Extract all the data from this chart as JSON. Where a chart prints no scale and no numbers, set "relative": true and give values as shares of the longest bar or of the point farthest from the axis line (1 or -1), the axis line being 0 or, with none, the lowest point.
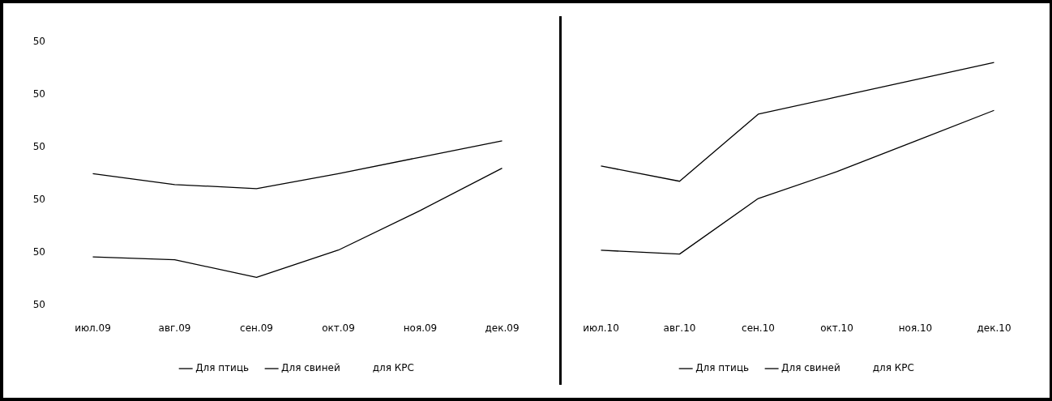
{
  "chart_data": [
    {
      "type": "line",
      "relative": true,
      "categories": [
        "июл.09",
        "авг.09",
        "сен.09",
        "окт.09",
        "ноя.09",
        "дек.09"
      ],
      "annotations": [
        "50",
        "50",
        "50",
        "50",
        "50",
        "50"
      ],
      "series": [
        {
          "name": "Для птиць",
          "color": "#000000",
          "values": [
            0.76,
            0.68,
            0.65,
            0.76,
            0.88,
            1
          ]
        },
        {
          "name": "Для свиней",
          "color": "#000000",
          "values": [
            0.15,
            0.13,
            0,
            0.2,
            0.49,
            0.8
          ]
        },
        {
          "name": "для КРС",
          "values": [
            null,
            null,
            null,
            null,
            null,
            null
          ]
        }
      ],
      "legend": "bottom",
      "grid": false,
      "marker": "none"
    },
    {
      "type": "line",
      "relative": true,
      "categories": [
        "июл.10",
        "авг.10",
        "сен.10",
        "окт.10",
        "ноя.10",
        "дек.10"
      ],
      "series": [
        {
          "name": "Для птиць",
          "color": "#000000",
          "values": [
            0.46,
            0.38,
            0.73,
            0.82,
            0.91,
            1
          ]
        },
        {
          "name": "Для свиней",
          "color": "#000000",
          "values": [
            0.02,
            0,
            0.29,
            0.43,
            0.59,
            0.75
          ]
        },
        {
          "name": "для КРС",
          "values": [
            null,
            null,
            null,
            null,
            null,
            null
          ]
        }
      ],
      "legend": "bottom",
      "grid": false,
      "marker": "none",
      "tick_labels": "x"
    }
  ]
}
